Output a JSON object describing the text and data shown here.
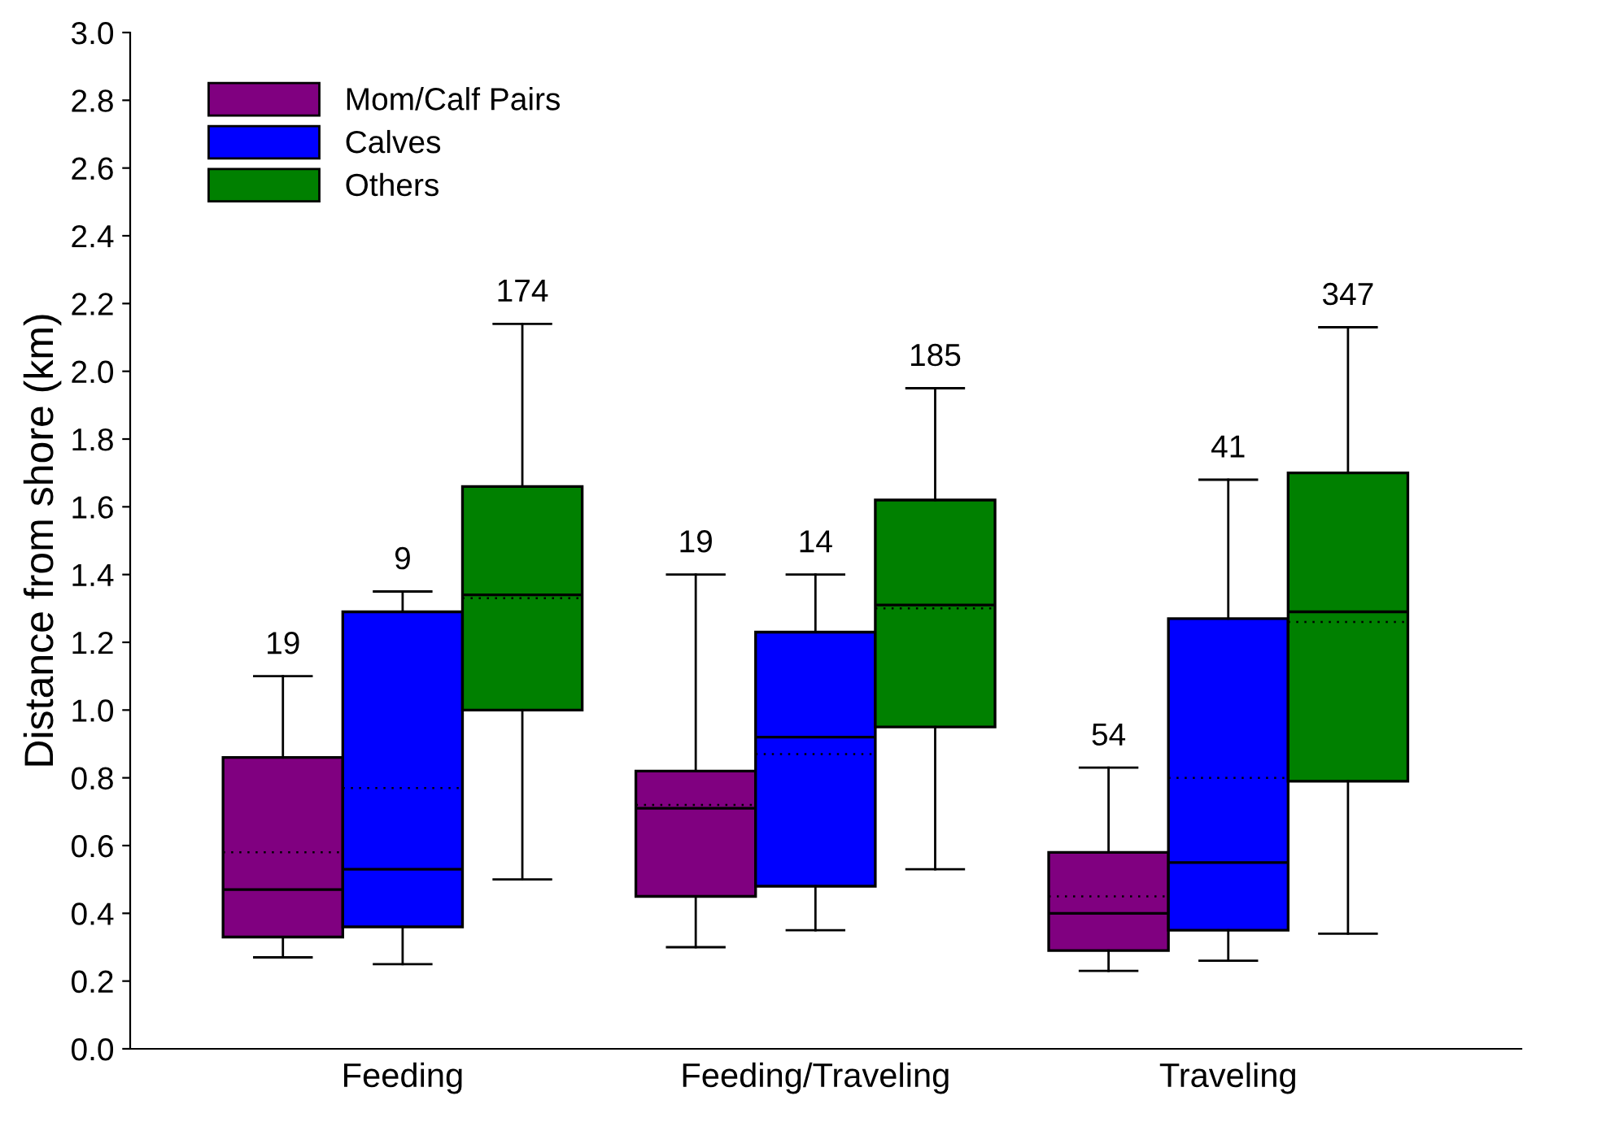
{
  "chart_data": {
    "type": "box",
    "ylabel": "Distance from shore (km)",
    "categories": [
      "Feeding",
      "Feeding/Traveling",
      "Traveling"
    ],
    "ylim": [
      0,
      3.0
    ],
    "yticks": [
      {
        "value": 0,
        "label": "0.0"
      },
      0.2,
      0.4,
      0.6,
      0.8,
      {
        "value": 1,
        "label": "1.0"
      },
      1.2,
      1.4,
      1.6,
      1.8,
      {
        "value": 2,
        "label": "2.0"
      },
      2.2,
      2.4,
      2.6,
      2.8,
      {
        "value": 3,
        "label": "3.0"
      }
    ],
    "legend": "top left",
    "grid": false,
    "series": [
      {
        "name": "Mom/Calf Pairs",
        "color": "#800080",
        "boxes": [
          {
            "low": 0.27,
            "q1": 0.33,
            "median": 0.47,
            "q3": 0.86,
            "high": 1.1,
            "mean": 0.58
          },
          {
            "low": 0.3,
            "q1": 0.45,
            "median": 0.71,
            "q3": 0.82,
            "high": 1.4,
            "mean": 0.72
          },
          {
            "low": 0.23,
            "q1": 0.29,
            "median": 0.4,
            "q3": 0.58,
            "high": 0.83,
            "mean": 0.45
          }
        ]
      },
      {
        "name": "Calves",
        "color": "#0000ff",
        "boxes": [
          {
            "low": 0.25,
            "q1": 0.36,
            "median": 0.53,
            "q3": 1.29,
            "high": 1.35,
            "mean": 0.77
          },
          {
            "low": 0.35,
            "q1": 0.48,
            "median": 0.92,
            "q3": 1.23,
            "high": 1.4,
            "mean": 0.87
          },
          {
            "low": 0.26,
            "q1": 0.35,
            "median": 0.55,
            "q3": 1.27,
            "high": 1.68,
            "mean": 0.8
          }
        ]
      },
      {
        "name": "Others",
        "color": "#008000",
        "boxes": [
          {
            "low": 0.5,
            "q1": 1.0,
            "median": 1.34,
            "q3": 1.66,
            "high": 2.14,
            "mean": 1.33
          },
          {
            "low": 0.53,
            "q1": 0.95,
            "median": 1.31,
            "q3": 1.62,
            "high": 1.95,
            "mean": 1.3
          },
          {
            "low": 0.34,
            "q1": 0.79,
            "median": 1.29,
            "q3": 1.7,
            "high": 2.13,
            "mean": 1.26
          }
        ]
      }
    ],
    "annotations": [
      "19",
      "19",
      "54",
      "9",
      "14",
      "41",
      "174",
      "185",
      "347"
    ]
  }
}
